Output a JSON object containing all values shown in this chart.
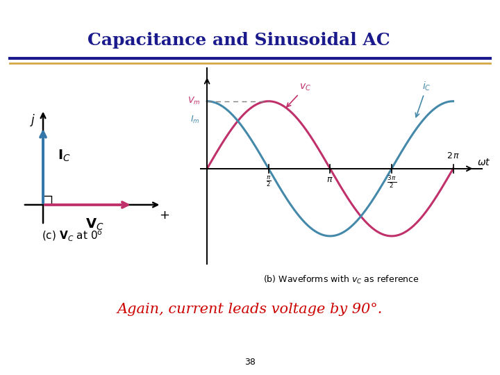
{
  "title": "Capacitance and Sinusoidal AC",
  "title_color": "#1a1a8c",
  "bg_color": "#FFFFFF",
  "divider_blue": "#1a1a8c",
  "divider_gold": "#d4a843",
  "subtitle_text": "Again, current leads voltage by 90°.",
  "subtitle_color": "#CC0000",
  "page_number": "38",
  "phasor_vc_color": "#C0306A",
  "phasor_ic_color": "#3377AA",
  "waveform_vc_color": "#C0306A",
  "waveform_ic_color": "#4488AA",
  "caption_left": "(c) $\\mathbf{V}_C$ at $0^{\\mathrm{o}}$",
  "caption_right": "(b) Waveforms with $v_C$ as reference"
}
